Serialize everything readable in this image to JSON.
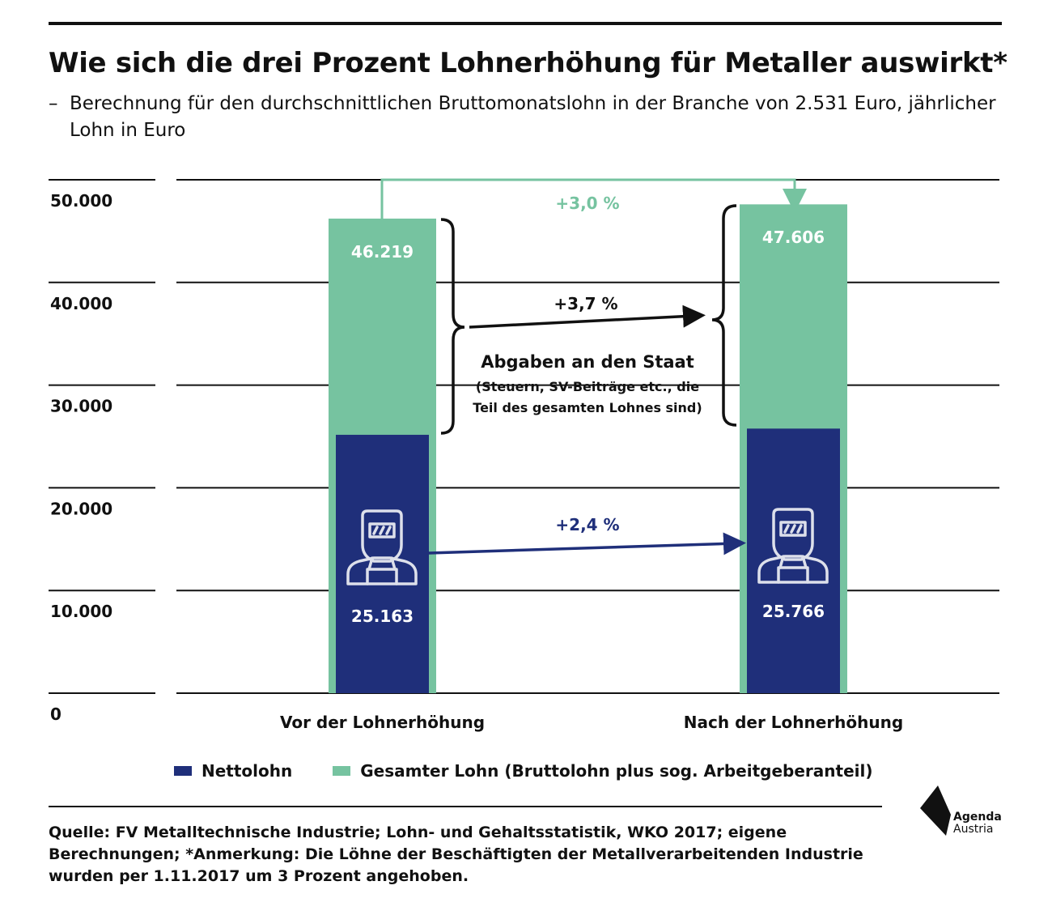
{
  "header": {
    "title": "Wie sich die drei Prozent Lohnerhöhung für Metaller auswirkt*",
    "subtitle_dash": "–",
    "subtitle": "Berechnung für den durchschnittlichen Bruttomonatslohn in der Branche von 2.531 Euro, jährlicher Lohn in Euro"
  },
  "chart_data": {
    "type": "bar",
    "categories": [
      "Vor der Lohnerhöhung",
      "Nach der Lohnerhöhung"
    ],
    "series": [
      {
        "name": "Gesamter Lohn (Bruttolohn plus sog. Arbeitgeberanteil)",
        "values": [
          46219,
          47606
        ],
        "labels": [
          "46.219",
          "47.606"
        ],
        "color": "#76c3a0"
      },
      {
        "name": "Nettolohn",
        "values": [
          25163,
          25766
        ],
        "labels": [
          "25.163",
          "25.766"
        ],
        "color": "#1f2f7a"
      }
    ],
    "y_ticks": [
      {
        "value": 0,
        "label": "0"
      },
      {
        "value": 10000,
        "label": "10.000"
      },
      {
        "value": 20000,
        "label": "20.000"
      },
      {
        "value": 30000,
        "label": "30.000"
      },
      {
        "value": 40000,
        "label": "40.000"
      },
      {
        "value": 50000,
        "label": "50.000"
      }
    ],
    "ylim": [
      0,
      50000
    ],
    "grid": true,
    "annotations": {
      "total_change": "+3,0 %",
      "tax_change": "+3,7 %",
      "net_change": "+2,4 %",
      "tax_title": "Abgaben an den Staat",
      "tax_note_1": "(Steuern, SV-Beiträge etc., die",
      "tax_note_2": "Teil des gesamten Lohnes sind)"
    }
  },
  "legend": {
    "net": {
      "label": "Nettolohn",
      "color": "#1f2f7a"
    },
    "total": {
      "label": "Gesamter Lohn (Bruttolohn plus sog. Arbeitgeberanteil)",
      "color": "#76c3a0"
    }
  },
  "footer": {
    "source": "Quelle: FV Metalltechnische Industrie; Lohn- und Gehaltsstatistik, WKO 2017; eigene Berechnungen; *Anmerkung: Die Löhne der Beschäftigten der Metallverarbeitenden Industrie wurden per 1.11.2017 um 3 Prozent angehoben.",
    "logo_line1": "Agenda",
    "logo_line2": "Austria"
  },
  "icons": {
    "worker": "welder-icon",
    "logo": "agenda-austria-logo"
  }
}
